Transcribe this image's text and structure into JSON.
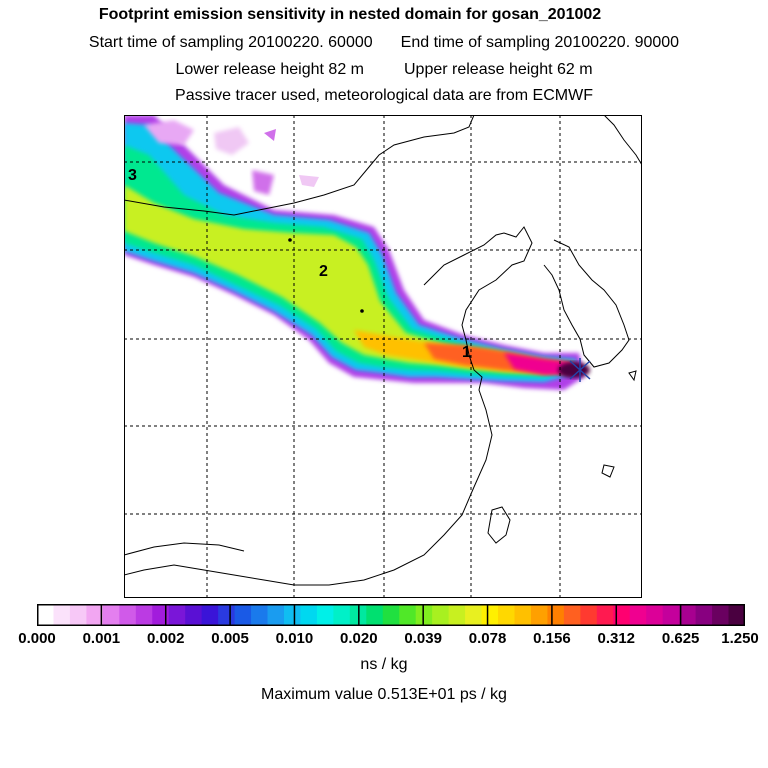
{
  "header": {
    "title": "Footprint emission sensitivity in nested domain for gosan_201002",
    "start_label": "Start time of sampling 20100220. 60000",
    "end_label": "End time of sampling 20100220. 90000",
    "lower_label": "Lower release height   82 m",
    "upper_label": "Upper release height   62 m",
    "note": "Passive tracer used, meteorological data are from ECMWF"
  },
  "map": {
    "markers": [
      "1",
      "2",
      "3"
    ]
  },
  "colorbar": {
    "tick_labels": [
      "0.000",
      "0.001",
      "0.002",
      "0.005",
      "0.010",
      "0.020",
      "0.039",
      "0.078",
      "0.156",
      "0.312",
      "0.625",
      "1.250"
    ],
    "colors": [
      "#ffffff",
      "#fbe2fb",
      "#f7c8f7",
      "#f2a6f2",
      "#e47fef",
      "#d05ae9",
      "#bb3be3",
      "#a21cdc",
      "#7a16d8",
      "#5a10d4",
      "#3a14d8",
      "#2a3ae0",
      "#1a5ae6",
      "#1a7aec",
      "#1a9cf0",
      "#10bdf2",
      "#00d8f0",
      "#00f0e8",
      "#00f0c8",
      "#00e8a0",
      "#00e070",
      "#20e040",
      "#50e828",
      "#80ee20",
      "#a8f020",
      "#c8f020",
      "#e8f020",
      "#fff000",
      "#ffd800",
      "#ffc000",
      "#ffa000",
      "#ff8000",
      "#ff6020",
      "#ff3a30",
      "#ff1a50",
      "#ff0070",
      "#f00090",
      "#dc0098",
      "#c4009c",
      "#a80090",
      "#880080",
      "#6a0060",
      "#4a0040"
    ],
    "units": "ns / kg"
  },
  "footer": {
    "max_value": "Maximum value  0.513E+01 ps / kg"
  }
}
